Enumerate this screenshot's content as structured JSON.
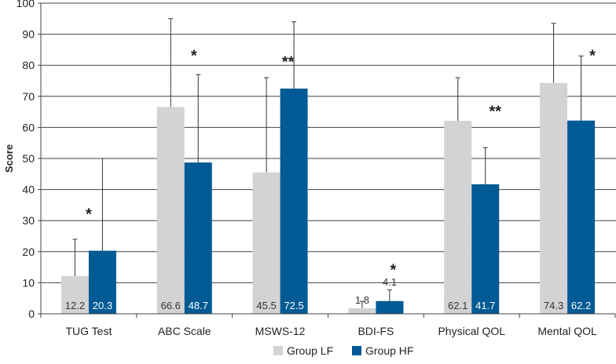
{
  "chart_data": {
    "type": "bar",
    "title": "",
    "xlabel": "",
    "ylabel": "Score",
    "ylim": [
      0,
      100
    ],
    "yticks": [
      "0",
      "10",
      "20",
      "30",
      "40",
      "50",
      "60",
      "70",
      "80",
      "90",
      "100"
    ],
    "grid": true,
    "categories": [
      "TUG Test",
      "ABC Scale",
      "MSWS-12",
      "BDI-FS",
      "Physical QOL",
      "Mental QOL"
    ],
    "series": [
      {
        "name": "Group LF",
        "color": "#d3d3d5",
        "values": [
          12.2,
          66.6,
          45.5,
          1.8,
          62.1,
          74.3
        ],
        "labels": [
          "12.2",
          "66.6",
          "45.5",
          "1.8",
          "62.1",
          "74.3"
        ],
        "error_upper": [
          24,
          95,
          76,
          4,
          76,
          93.5
        ]
      },
      {
        "name": "Group HF",
        "color": "#005a94",
        "values": [
          20.3,
          48.7,
          72.5,
          4.1,
          41.7,
          62.2
        ],
        "labels": [
          "20.3",
          "48.7",
          "72.5",
          "4.1",
          "41.7",
          "62.2"
        ],
        "error_upper": [
          50,
          77,
          94,
          7.7,
          53.5,
          83
        ]
      }
    ],
    "significance": [
      {
        "category": "TUG Test",
        "mark": "*",
        "level": 33
      },
      {
        "category": "ABC Scale",
        "mark": "*",
        "level": 84
      },
      {
        "category": "MSWS-12",
        "mark": "**",
        "level": 82
      },
      {
        "category": "BDI-FS",
        "mark": "*",
        "level": 15
      },
      {
        "category": "Physical QOL",
        "mark": "**",
        "level": 66
      },
      {
        "category": "Mental QOL",
        "mark": "*",
        "level": 84
      }
    ],
    "legend_position": "bottom-center"
  }
}
